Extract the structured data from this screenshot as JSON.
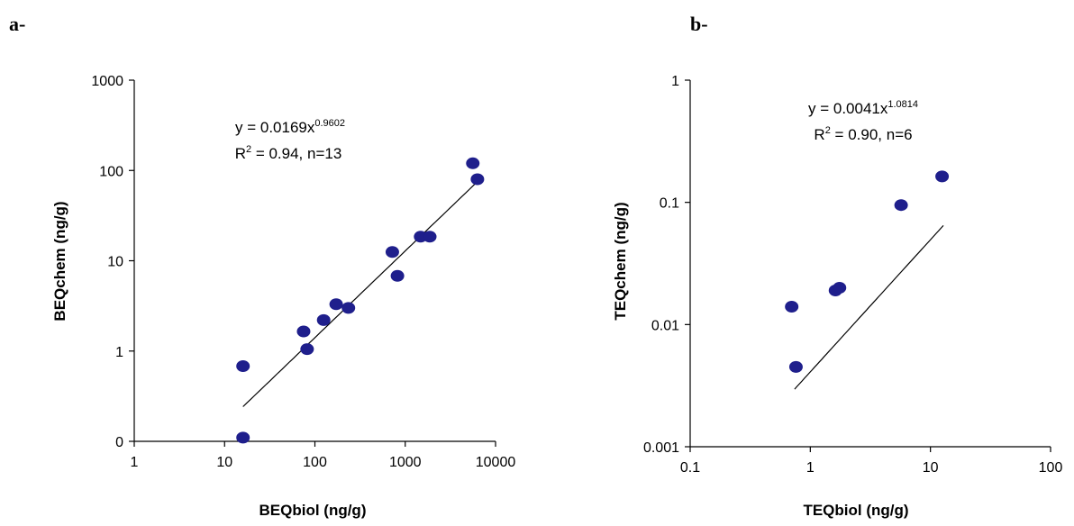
{
  "panels": [
    {
      "label": "a-"
    },
    {
      "label": "b-"
    }
  ],
  "chart_data": [
    {
      "type": "scatter",
      "scale": "log-log",
      "xlabel": "BEQbiol (ng/g)",
      "ylabel": "BEQchem (ng/g)",
      "xlim": [
        1,
        10000
      ],
      "ylim": [
        0.1,
        1000
      ],
      "x_ticks": [
        1,
        10,
        100,
        1000,
        10000
      ],
      "x_tick_labels": [
        "1",
        "10",
        "100",
        "1000",
        "10000"
      ],
      "y_ticks": [
        0.1,
        1,
        10,
        100,
        1000
      ],
      "y_tick_labels": [
        "0",
        "1",
        "10",
        "100",
        "1000"
      ],
      "points": [
        {
          "x": 16,
          "y": 0.11
        },
        {
          "x": 16,
          "y": 0.68
        },
        {
          "x": 75,
          "y": 1.65
        },
        {
          "x": 82,
          "y": 1.05
        },
        {
          "x": 125,
          "y": 2.2
        },
        {
          "x": 172,
          "y": 3.3
        },
        {
          "x": 235,
          "y": 3.0
        },
        {
          "x": 720,
          "y": 12.5
        },
        {
          "x": 820,
          "y": 6.8
        },
        {
          "x": 1480,
          "y": 18.5
        },
        {
          "x": 1870,
          "y": 18.5
        },
        {
          "x": 5600,
          "y": 120
        },
        {
          "x": 6300,
          "y": 80
        }
      ],
      "fit": {
        "a": 0.0169,
        "b": 0.9602,
        "x_range": [
          16,
          6300
        ]
      },
      "equation": {
        "prefix": "y = 0.0169x",
        "exponent": "0.9602"
      },
      "r2": {
        "prefix": "R",
        "exponent": "2",
        "suffix": " = 0.94, n=13"
      },
      "marker_color": "#1f1f8c"
    },
    {
      "type": "scatter",
      "scale": "log-log",
      "xlabel": "TEQbiol (ng/g)",
      "ylabel": "TEQchem (ng/g)",
      "xlim": [
        0.1,
        100
      ],
      "ylim": [
        0.001,
        1
      ],
      "x_ticks": [
        0.1,
        1,
        10,
        100
      ],
      "x_tick_labels": [
        "0.1",
        "1",
        "10",
        "100"
      ],
      "y_ticks": [
        0.001,
        0.01,
        0.1,
        1
      ],
      "y_tick_labels": [
        "0.001",
        "0.01",
        "0.1",
        "1"
      ],
      "points": [
        {
          "x": 0.7,
          "y": 0.014
        },
        {
          "x": 0.76,
          "y": 0.0045
        },
        {
          "x": 1.62,
          "y": 0.019
        },
        {
          "x": 1.75,
          "y": 0.02
        },
        {
          "x": 5.7,
          "y": 0.095
        },
        {
          "x": 12.5,
          "y": 0.163
        }
      ],
      "fit": {
        "a": 0.0041,
        "b": 1.0814,
        "x_range": [
          0.74,
          12.8
        ]
      },
      "equation": {
        "prefix": "y = 0.0041x",
        "exponent": "1.0814"
      },
      "r2": {
        "prefix": "R",
        "exponent": "2",
        "suffix": " = 0.90, n=6"
      },
      "marker_color": "#1f1f8c"
    }
  ]
}
